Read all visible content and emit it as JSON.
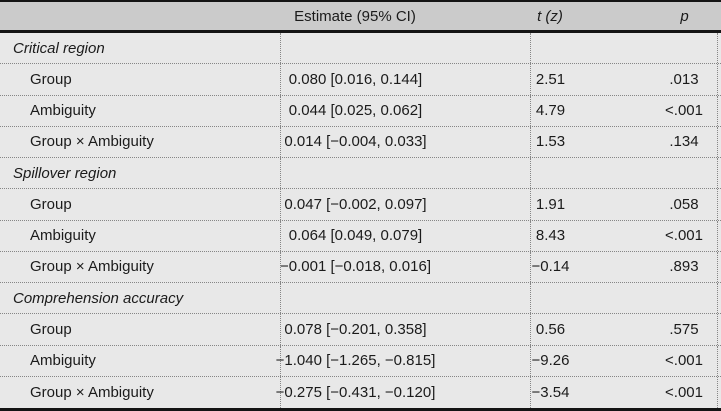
{
  "palette": {
    "header_bg": "#cbcbcb",
    "body_bg": "#e8e8e8",
    "rule_color": "#141414",
    "dotted_color": "#868686",
    "text_color": "#1b1b1b"
  },
  "header": {
    "label": "",
    "estimate": "Estimate (95% CI)",
    "t": "t (z)",
    "p": "p"
  },
  "rows": [
    {
      "type": "section",
      "label": "Critical region"
    },
    {
      "type": "item",
      "label": "Group",
      "estimate": "0.080 [0.016, 0.144]",
      "t": "2.51",
      "p": ".013"
    },
    {
      "type": "item",
      "label": "Ambiguity",
      "estimate": "0.044 [0.025, 0.062]",
      "t": "4.79",
      "p": "<.001"
    },
    {
      "type": "item",
      "label": "Group × Ambiguity",
      "estimate": "0.014 [−0.004, 0.033]",
      "t": "1.53",
      "p": ".134"
    },
    {
      "type": "section",
      "label": "Spillover region"
    },
    {
      "type": "item",
      "label": "Group",
      "estimate": "0.047 [−0.002, 0.097]",
      "t": "1.91",
      "p": ".058"
    },
    {
      "type": "item",
      "label": "Ambiguity",
      "estimate": "0.064 [0.049, 0.079]",
      "t": "8.43",
      "p": "<.001"
    },
    {
      "type": "item",
      "label": "Group × Ambiguity",
      "estimate": "−0.001 [−0.018, 0.016]",
      "t": "−0.14",
      "p": ".893"
    },
    {
      "type": "section",
      "label": "Comprehension accuracy"
    },
    {
      "type": "item",
      "label": "Group",
      "estimate": "0.078 [−0.201, 0.358]",
      "t": "0.56",
      "p": ".575"
    },
    {
      "type": "item",
      "label": "Ambiguity",
      "estimate": "−1.040 [−1.265, −0.815]",
      "t": "−9.26",
      "p": "<.001"
    },
    {
      "type": "item",
      "label": "Group × Ambiguity",
      "estimate": "−0.275 [−0.431, −0.120]",
      "t": "−3.54",
      "p": "<.001"
    }
  ]
}
